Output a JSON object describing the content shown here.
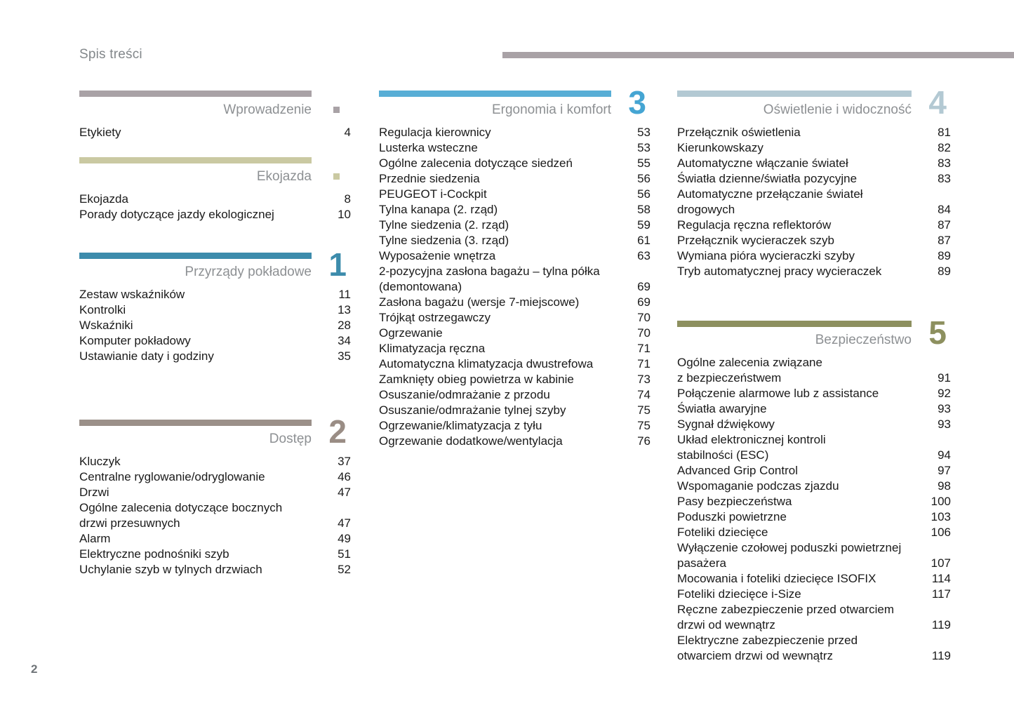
{
  "page": {
    "title": "Spis treści",
    "page_number": "2"
  },
  "colors": {
    "top_rule": "#a9a2a6",
    "section_title_gray": "#8d9093",
    "item_text": "#1a1a1a",
    "intro": "#a9a2a6",
    "eco": "#cac9a2",
    "s1_teal": "#3d8cac",
    "s2_taupe": "#9b9089",
    "s3_sky": "#58aed6",
    "s4_pale_blue": "#b3c9d3",
    "s5_olive": "#8d905f"
  },
  "sections": {
    "intro": {
      "title": "Wprowadzenie",
      "marker": "square",
      "items": [
        {
          "label": "Etykiety",
          "page": "4"
        }
      ]
    },
    "eco": {
      "title": "Ekojazda",
      "marker": "square",
      "items": [
        {
          "label": "Ekojazda",
          "page": "8"
        },
        {
          "label": "Porady dotyczące jazdy ekologicznej",
          "page": "10"
        }
      ]
    },
    "s1": {
      "title": "Przyrządy pokładowe",
      "number": "1",
      "items": [
        {
          "label": "Zestaw wskaźników",
          "page": "11"
        },
        {
          "label": "Kontrolki",
          "page": "13"
        },
        {
          "label": "Wskaźniki",
          "page": "28"
        },
        {
          "label": "Komputer pokładowy",
          "page": "34"
        },
        {
          "label": "Ustawianie daty i godziny",
          "page": "35"
        }
      ]
    },
    "s2": {
      "title": "Dostęp",
      "number": "2",
      "items": [
        {
          "label": "Kluczyk",
          "page": "37"
        },
        {
          "label": "Centralne ryglowanie/odryglowanie",
          "page": "46"
        },
        {
          "label": "Drzwi",
          "page": "47"
        },
        {
          "label": "Ogólne zalecenia dotyczące bocznych\ndrzwi przesuwnych",
          "page": "47"
        },
        {
          "label": "Alarm",
          "page": "49"
        },
        {
          "label": "Elektryczne podnośniki szyb",
          "page": "51"
        },
        {
          "label": "Uchylanie szyb w tylnych drzwiach",
          "page": "52"
        }
      ]
    },
    "s3": {
      "title": "Ergonomia i komfort",
      "number": "3",
      "items": [
        {
          "label": "Regulacja kierownicy",
          "page": "53"
        },
        {
          "label": "Lusterka wsteczne",
          "page": "53"
        },
        {
          "label": "Ogólne zalecenia dotyczące siedzeń",
          "page": "55"
        },
        {
          "label": "Przednie siedzenia",
          "page": "56"
        },
        {
          "label": "PEUGEOT i-Cockpit",
          "page": "56"
        },
        {
          "label": "Tylna kanapa (2. rząd)",
          "page": "58"
        },
        {
          "label": "Tylne siedzenia (2. rząd)",
          "page": "59"
        },
        {
          "label": "Tylne siedzenia (3. rząd)",
          "page": "61"
        },
        {
          "label": "Wyposażenie wnętrza",
          "page": "63"
        },
        {
          "label": "2-pozycyjna zasłona bagażu – tylna półka\n(demontowana)",
          "page": "69"
        },
        {
          "label": "Zasłona bagażu (wersje 7-miejscowe)",
          "page": "69"
        },
        {
          "label": "Trójkąt ostrzegawczy",
          "page": "70"
        },
        {
          "label": "Ogrzewanie",
          "page": "70"
        },
        {
          "label": "Klimatyzacja ręczna",
          "page": "71"
        },
        {
          "label": "Automatyczna klimatyzacja dwustrefowa",
          "page": "71"
        },
        {
          "label": "Zamknięty obieg powietrza w kabinie",
          "page": "73"
        },
        {
          "label": "Osuszanie/odmrażanie z przodu",
          "page": "74"
        },
        {
          "label": "Osuszanie/odmrażanie tylnej szyby",
          "page": "75"
        },
        {
          "label": "Ogrzewanie/klimatyzacja z tyłu",
          "page": "75"
        },
        {
          "label": "Ogrzewanie dodatkowe/wentylacja",
          "page": "76"
        }
      ]
    },
    "s4": {
      "title": "Oświetlenie i widoczność",
      "number": "4",
      "items": [
        {
          "label": "Przełącznik oświetlenia",
          "page": "81"
        },
        {
          "label": "Kierunkowskazy",
          "page": "82"
        },
        {
          "label": "Automatyczne włączanie świateł",
          "page": "83"
        },
        {
          "label": "Światła dzienne/światła pozycyjne",
          "page": "83"
        },
        {
          "label": "Automatyczne przełączanie świateł\ndrogowych",
          "page": "84"
        },
        {
          "label": "Regulacja ręczna reflektorów",
          "page": "87"
        },
        {
          "label": "Przełącznik wycieraczek szyb",
          "page": "87"
        },
        {
          "label": "Wymiana pióra wycieraczki szyby",
          "page": "89"
        },
        {
          "label": "Tryb automatycznej pracy wycieraczek",
          "page": "89"
        }
      ]
    },
    "s5": {
      "title": "Bezpieczeństwo",
      "number": "5",
      "items": [
        {
          "label": "Ogólne zalecenia związane\nz bezpieczeństwem",
          "page": "91"
        },
        {
          "label": "Połączenie alarmowe lub z assistance",
          "page": "92"
        },
        {
          "label": "Światła awaryjne",
          "page": "93"
        },
        {
          "label": "Sygnał dźwiękowy",
          "page": "93"
        },
        {
          "label": "Układ elektronicznej kontroli\nstabilności (ESC)",
          "page": "94"
        },
        {
          "label": "Advanced Grip Control",
          "page": "97"
        },
        {
          "label": "Wspomaganie podczas zjazdu",
          "page": "98"
        },
        {
          "label": "Pasy bezpieczeństwa",
          "page": "100"
        },
        {
          "label": "Poduszki powietrzne",
          "page": "103"
        },
        {
          "label": "Foteliki dziecięce",
          "page": "106"
        },
        {
          "label": "Wyłączenie czołowej poduszki powietrznej\npasażera",
          "page": "107"
        },
        {
          "label": "Mocowania i foteliki dziecięce ISOFIX",
          "page": "114"
        },
        {
          "label": "Foteliki dziecięce i-Size",
          "page": "117"
        },
        {
          "label": "Ręczne zabezpieczenie przed otwarciem\ndrzwi od wewnątrz",
          "page": "119"
        },
        {
          "label": "Elektryczne zabezpieczenie przed\notwarciem drzwi od wewnątrz",
          "page": "119"
        }
      ]
    }
  }
}
